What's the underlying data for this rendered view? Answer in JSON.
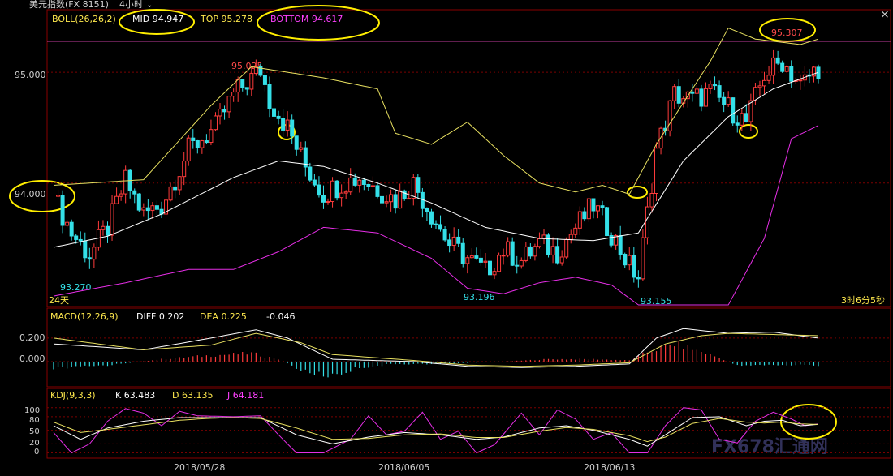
{
  "window": {
    "title": "美元指数(FX 8151)",
    "period": "4小时",
    "close_label": "×"
  },
  "boll": {
    "label": "BOLL(26,26,2)",
    "mid": "MID 94.947",
    "top": "TOP 95.278",
    "bottom": "BOTTOM 94.617"
  },
  "macd": {
    "label": "MACD(12,26,9)",
    "diff": "DIFF 0.202",
    "dea": "DEA 0.225",
    "hist": "-0.046"
  },
  "kdj": {
    "label": "KDJ(9,3,3)",
    "k": "K 63.483",
    "d": "D 63.135",
    "j": "J 64.181"
  },
  "days_label": "24天",
  "timer": "3时6分5秒",
  "watermark": "FX678汇通网",
  "price_marks": {
    "high1": "95.025",
    "high2": "95.307",
    "low1": "93.270",
    "low2": "93.196",
    "low3": "93.155"
  },
  "colors": {
    "up": "#ff3b3b",
    "down": "#34e0e8",
    "boll_upper": "#e8e060",
    "boll_mid": "#ffffff",
    "boll_lower": "#e62ee6",
    "hline": "#ff4fd0",
    "annotation": "#ffee00"
  },
  "chart_data": [
    {
      "type": "candlestick",
      "name": "price",
      "ylim": [
        92.9,
        95.55
      ],
      "yticks": [
        "95.000",
        "94.000"
      ],
      "xticks": [
        "2018/05/28",
        "2018/06/05",
        "2018/06/13"
      ],
      "horizontal_lines": [
        95.28,
        94.47
      ],
      "waypoints": [
        [
          0,
          93.88
        ],
        [
          4,
          93.55
        ],
        [
          8,
          93.35
        ],
        [
          12,
          93.6
        ],
        [
          16,
          94.02
        ],
        [
          20,
          93.72
        ],
        [
          24,
          93.8
        ],
        [
          30,
          94.3
        ],
        [
          36,
          94.5
        ],
        [
          40,
          94.8
        ],
        [
          46,
          95.02
        ],
        [
          48,
          94.75
        ],
        [
          52,
          94.5
        ],
        [
          56,
          94.15
        ],
        [
          60,
          93.9
        ],
        [
          64,
          94.0
        ],
        [
          68,
          94.05
        ],
        [
          72,
          93.95
        ],
        [
          76,
          93.85
        ],
        [
          80,
          94.0
        ],
        [
          84,
          93.72
        ],
        [
          88,
          93.45
        ],
        [
          92,
          93.32
        ],
        [
          96,
          93.2
        ],
        [
          100,
          93.4
        ],
        [
          104,
          93.3
        ],
        [
          108,
          93.45
        ],
        [
          112,
          93.38
        ],
        [
          116,
          93.6
        ],
        [
          120,
          93.8
        ],
        [
          124,
          93.55
        ],
        [
          128,
          93.25
        ],
        [
          130,
          93.15
        ],
        [
          134,
          94.3
        ],
        [
          138,
          94.8
        ],
        [
          142,
          94.75
        ],
        [
          146,
          94.82
        ],
        [
          150,
          94.68
        ],
        [
          154,
          94.55
        ],
        [
          158,
          94.98
        ],
        [
          162,
          95.1
        ],
        [
          166,
          94.88
        ],
        [
          170,
          95.05
        ]
      ],
      "boll_upper": [
        [
          0,
          93.98
        ],
        [
          20,
          94.03
        ],
        [
          35,
          94.7
        ],
        [
          44,
          95.05
        ],
        [
          60,
          94.95
        ],
        [
          72,
          94.85
        ],
        [
          76,
          94.45
        ],
        [
          84,
          94.35
        ],
        [
          92,
          94.55
        ],
        [
          100,
          94.25
        ],
        [
          108,
          94.0
        ],
        [
          116,
          93.92
        ],
        [
          122,
          93.98
        ],
        [
          128,
          93.9
        ],
        [
          134,
          94.35
        ],
        [
          146,
          95.1
        ],
        [
          150,
          95.4
        ],
        [
          156,
          95.3
        ],
        [
          166,
          95.25
        ],
        [
          170,
          95.3
        ]
      ],
      "boll_mid": [
        [
          0,
          93.42
        ],
        [
          12,
          93.52
        ],
        [
          24,
          93.72
        ],
        [
          40,
          94.05
        ],
        [
          50,
          94.2
        ],
        [
          60,
          94.15
        ],
        [
          72,
          94.0
        ],
        [
          84,
          93.82
        ],
        [
          96,
          93.6
        ],
        [
          108,
          93.5
        ],
        [
          120,
          93.48
        ],
        [
          130,
          93.55
        ],
        [
          140,
          94.2
        ],
        [
          150,
          94.6
        ],
        [
          160,
          94.85
        ],
        [
          170,
          95.0
        ]
      ],
      "boll_lower": [
        [
          0,
          92.98
        ],
        [
          16,
          93.1
        ],
        [
          30,
          93.22
        ],
        [
          40,
          93.22
        ],
        [
          50,
          93.38
        ],
        [
          60,
          93.6
        ],
        [
          72,
          93.55
        ],
        [
          84,
          93.32
        ],
        [
          92,
          93.05
        ],
        [
          100,
          93.0
        ],
        [
          108,
          93.1
        ],
        [
          116,
          93.15
        ],
        [
          124,
          93.08
        ],
        [
          130,
          92.9
        ],
        [
          150,
          92.9
        ],
        [
          158,
          93.5
        ],
        [
          164,
          94.4
        ],
        [
          170,
          94.52
        ]
      ]
    },
    {
      "type": "bar+line",
      "name": "MACD",
      "ylim": [
        -0.2,
        0.33
      ],
      "yticks": [
        "0.200",
        "0.000"
      ],
      "diff": [
        [
          0,
          0.15
        ],
        [
          20,
          0.1
        ],
        [
          35,
          0.2
        ],
        [
          45,
          0.27
        ],
        [
          52,
          0.2
        ],
        [
          62,
          0.02
        ],
        [
          80,
          0.0
        ],
        [
          92,
          -0.04
        ],
        [
          104,
          -0.05
        ],
        [
          116,
          -0.04
        ],
        [
          128,
          -0.02
        ],
        [
          134,
          0.2
        ],
        [
          140,
          0.28
        ],
        [
          150,
          0.24
        ],
        [
          160,
          0.25
        ],
        [
          170,
          0.2
        ]
      ],
      "dea": [
        [
          0,
          0.2
        ],
        [
          20,
          0.1
        ],
        [
          35,
          0.14
        ],
        [
          45,
          0.24
        ],
        [
          55,
          0.16
        ],
        [
          62,
          0.06
        ],
        [
          80,
          0.01
        ],
        [
          92,
          -0.03
        ],
        [
          104,
          -0.04
        ],
        [
          116,
          -0.03
        ],
        [
          128,
          -0.01
        ],
        [
          136,
          0.15
        ],
        [
          144,
          0.22
        ],
        [
          150,
          0.24
        ],
        [
          160,
          0.23
        ],
        [
          170,
          0.22
        ]
      ],
      "hist": [
        [
          0,
          -0.06
        ],
        [
          12,
          -0.03
        ],
        [
          24,
          0.02
        ],
        [
          34,
          0.05
        ],
        [
          44,
          0.07
        ],
        [
          50,
          0.02
        ],
        [
          56,
          -0.09
        ],
        [
          62,
          -0.12
        ],
        [
          68,
          -0.05
        ],
        [
          76,
          -0.02
        ],
        [
          84,
          -0.02
        ],
        [
          92,
          -0.01
        ],
        [
          100,
          0.0
        ],
        [
          110,
          0.02
        ],
        [
          120,
          0.02
        ],
        [
          128,
          0.01
        ],
        [
          132,
          0.08
        ],
        [
          138,
          0.15
        ],
        [
          146,
          0.06
        ],
        [
          152,
          -0.03
        ],
        [
          160,
          -0.03
        ],
        [
          170,
          -0.03
        ]
      ]
    },
    {
      "type": "line",
      "name": "KDJ",
      "ylim": [
        -8,
        112
      ],
      "yticks": [
        "100",
        "80",
        "50",
        "20",
        "0"
      ],
      "k": [
        [
          0,
          60
        ],
        [
          6,
          30
        ],
        [
          12,
          55
        ],
        [
          20,
          70
        ],
        [
          28,
          78
        ],
        [
          34,
          78
        ],
        [
          40,
          78
        ],
        [
          46,
          78
        ],
        [
          54,
          40
        ],
        [
          62,
          20
        ],
        [
          70,
          35
        ],
        [
          78,
          45
        ],
        [
          86,
          40
        ],
        [
          94,
          30
        ],
        [
          100,
          35
        ],
        [
          108,
          55
        ],
        [
          114,
          60
        ],
        [
          120,
          50
        ],
        [
          128,
          30
        ],
        [
          132,
          15
        ],
        [
          136,
          40
        ],
        [
          142,
          78
        ],
        [
          148,
          80
        ],
        [
          154,
          60
        ],
        [
          158,
          70
        ],
        [
          162,
          72
        ],
        [
          166,
          60
        ],
        [
          170,
          63
        ]
      ],
      "d": [
        [
          0,
          68
        ],
        [
          6,
          45
        ],
        [
          12,
          52
        ],
        [
          20,
          62
        ],
        [
          28,
          72
        ],
        [
          34,
          76
        ],
        [
          40,
          78
        ],
        [
          46,
          76
        ],
        [
          54,
          55
        ],
        [
          62,
          30
        ],
        [
          70,
          32
        ],
        [
          78,
          40
        ],
        [
          86,
          42
        ],
        [
          94,
          34
        ],
        [
          100,
          34
        ],
        [
          108,
          48
        ],
        [
          114,
          56
        ],
        [
          120,
          52
        ],
        [
          128,
          38
        ],
        [
          132,
          25
        ],
        [
          136,
          35
        ],
        [
          142,
          65
        ],
        [
          148,
          76
        ],
        [
          154,
          68
        ],
        [
          158,
          66
        ],
        [
          162,
          68
        ],
        [
          166,
          64
        ],
        [
          170,
          63
        ]
      ],
      "j": [
        [
          0,
          45
        ],
        [
          4,
          0
        ],
        [
          8,
          20
        ],
        [
          12,
          70
        ],
        [
          16,
          98
        ],
        [
          20,
          88
        ],
        [
          24,
          60
        ],
        [
          28,
          92
        ],
        [
          32,
          82
        ],
        [
          40,
          80
        ],
        [
          46,
          82
        ],
        [
          50,
          40
        ],
        [
          54,
          0
        ],
        [
          60,
          0
        ],
        [
          66,
          30
        ],
        [
          70,
          82
        ],
        [
          74,
          40
        ],
        [
          78,
          48
        ],
        [
          82,
          90
        ],
        [
          86,
          30
        ],
        [
          90,
          48
        ],
        [
          94,
          0
        ],
        [
          98,
          18
        ],
        [
          104,
          88
        ],
        [
          108,
          40
        ],
        [
          112,
          95
        ],
        [
          116,
          75
        ],
        [
          120,
          30
        ],
        [
          124,
          45
        ],
        [
          128,
          0
        ],
        [
          132,
          0
        ],
        [
          136,
          60
        ],
        [
          140,
          100
        ],
        [
          144,
          95
        ],
        [
          148,
          30
        ],
        [
          152,
          22
        ],
        [
          156,
          70
        ],
        [
          160,
          90
        ],
        [
          164,
          75
        ],
        [
          167,
          60
        ],
        [
          170,
          64
        ]
      ]
    }
  ]
}
